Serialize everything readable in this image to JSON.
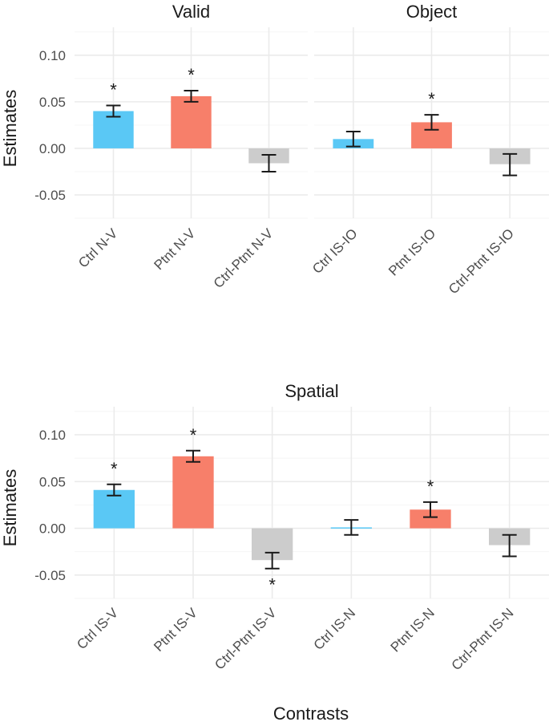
{
  "colors": {
    "ctrl": "#5AC8F5",
    "ptnt": "#F77F6A",
    "diff": "#CCCCCC"
  },
  "y_axis_label": "Estimates",
  "x_axis_label": "Contrasts",
  "chart_data": [
    {
      "type": "bar",
      "title": "Valid",
      "ylabel": "Estimates",
      "ylim": [
        -0.075,
        0.13
      ],
      "yticks": [
        "0.10",
        "0.05",
        "0.00",
        "-0.05"
      ],
      "categories": [
        "Ctrl N-V",
        "Ptnt N-V",
        "Ctrl-Ptnt N-V"
      ],
      "groups": [
        "ctrl",
        "ptnt",
        "diff"
      ],
      "values": [
        0.04,
        0.056,
        -0.016
      ],
      "error_low": [
        0.034,
        0.05,
        -0.025
      ],
      "error_high": [
        0.046,
        0.062,
        -0.007
      ],
      "significance": [
        "*",
        "*",
        ""
      ]
    },
    {
      "type": "bar",
      "title": "Object",
      "ylim": [
        -0.075,
        0.13
      ],
      "categories": [
        "Ctrl IS-IO",
        "Ptnt IS-IO",
        "Ctrl-Ptnt IS-IO"
      ],
      "groups": [
        "ctrl",
        "ptnt",
        "diff"
      ],
      "values": [
        0.01,
        0.028,
        -0.017
      ],
      "error_low": [
        0.002,
        0.02,
        -0.029
      ],
      "error_high": [
        0.018,
        0.036,
        -0.006
      ],
      "significance": [
        "",
        "*",
        ""
      ]
    },
    {
      "type": "bar",
      "title": "Spatial",
      "ylabel": "Estimates",
      "xlabel": "Contrasts",
      "ylim": [
        -0.075,
        0.13
      ],
      "yticks": [
        "0.10",
        "0.05",
        "0.00",
        "-0.05"
      ],
      "categories": [
        "Ctrl IS-V",
        "Ptnt IS-V",
        "Ctrl-Ptnt IS-V",
        "Ctrl IS-N",
        "Ptnt IS-N",
        "Ctrl-Ptnt IS-N"
      ],
      "groups": [
        "ctrl",
        "ptnt",
        "diff",
        "ctrl",
        "ptnt",
        "diff"
      ],
      "values": [
        0.041,
        0.077,
        -0.034,
        0.001,
        0.02,
        -0.018
      ],
      "error_low": [
        0.035,
        0.071,
        -0.043,
        -0.007,
        0.012,
        -0.03
      ],
      "error_high": [
        0.047,
        0.083,
        -0.026,
        0.009,
        0.028,
        -0.007
      ],
      "significance": [
        "*",
        "*",
        "*",
        "",
        "*",
        ""
      ]
    }
  ]
}
